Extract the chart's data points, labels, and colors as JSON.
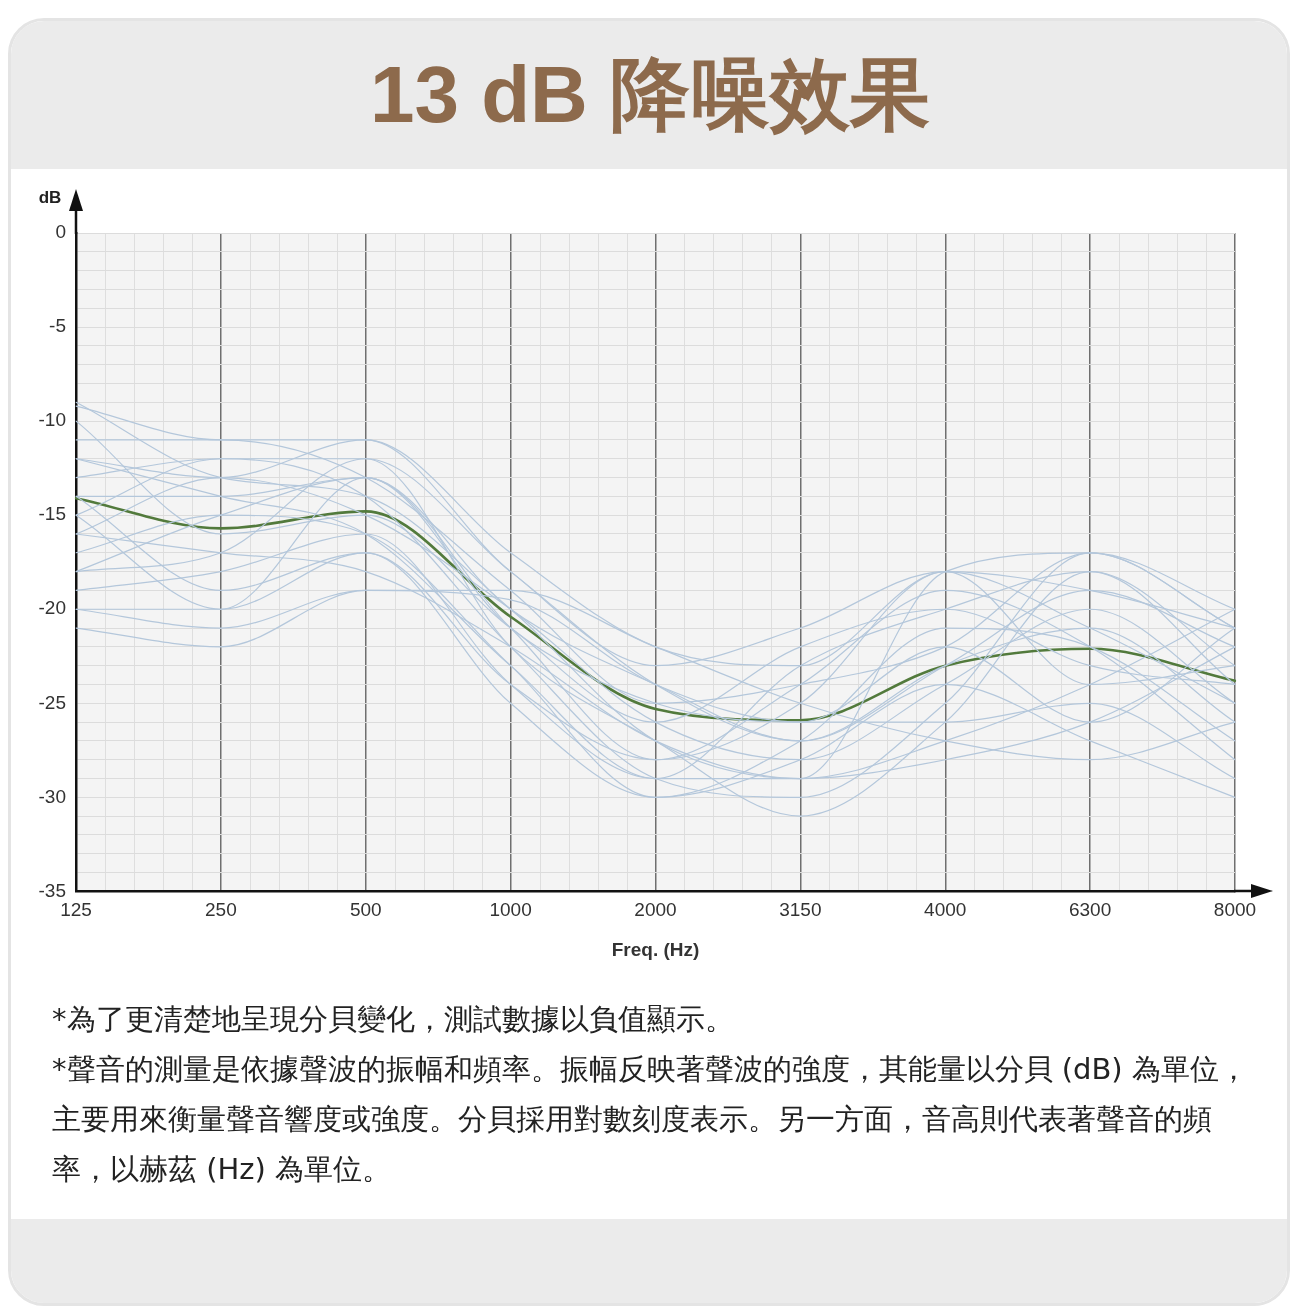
{
  "chart_data": {
    "type": "line",
    "title": "13 dB 降噪效果",
    "xlabel": "Freq. (Hz)",
    "ylabel": "dB",
    "categories": [
      "125",
      "250",
      "500",
      "1000",
      "2000",
      "3150",
      "4000",
      "6300",
      "8000"
    ],
    "series": [
      {
        "color": "#b4c7db",
        "values": [
          -9,
          -13,
          -14,
          -20,
          -27,
          -29,
          -18,
          -17,
          -20
        ]
      },
      {
        "color": "#b4c7db",
        "values": [
          -9.2,
          -11,
          -11,
          -18,
          -23,
          -21,
          -18,
          -19,
          -21
        ]
      },
      {
        "color": "#b4c7db",
        "values": [
          -11,
          -11,
          -13,
          -19,
          -25,
          -24,
          -22,
          -17,
          -21
        ]
      },
      {
        "color": "#b4c7db",
        "values": [
          -12,
          -13,
          -11,
          -17,
          -22,
          -23,
          -18,
          -21,
          -25
        ]
      },
      {
        "color": "#b4c7db",
        "values": [
          -13,
          -12,
          -12,
          -18,
          -24,
          -27,
          -23,
          -19,
          -22
        ]
      },
      {
        "color": "#b4c7db",
        "values": [
          -14,
          -14,
          -13,
          -21,
          -28,
          -25,
          -18,
          -24,
          -23
        ]
      },
      {
        "color": "#b4c7db",
        "values": [
          -15,
          -12,
          -14,
          -22,
          -29,
          -30,
          -25,
          -17,
          -21
        ]
      },
      {
        "color": "#b4c7db",
        "values": [
          -16,
          -13,
          -15,
          -20,
          -26,
          -28,
          -24,
          -20,
          -25
        ]
      },
      {
        "color": "#b4c7db",
        "values": [
          -17,
          -15,
          -16,
          -23,
          -30,
          -27,
          -21,
          -22,
          -27
        ]
      },
      {
        "color": "#b4c7db",
        "values": [
          -18,
          -17,
          -12,
          -22,
          -27,
          -31,
          -26,
          -18,
          -24
        ]
      },
      {
        "color": "#b4c7db",
        "values": [
          -19,
          -18,
          -16,
          -24,
          -29,
          -29,
          -28,
          -26,
          -22
        ]
      },
      {
        "color": "#b4c7db",
        "values": [
          -20,
          -20,
          -17,
          -25,
          -30,
          -28,
          -24,
          -27,
          -30
        ]
      },
      {
        "color": "#b4c7db",
        "values": [
          -21,
          -22,
          -19,
          -19,
          -22,
          -25,
          -27,
          -28,
          -26
        ]
      },
      {
        "color": "#b4c7db",
        "values": [
          -10,
          -16,
          -15,
          -21,
          -26,
          -22,
          -20,
          -23,
          -24
        ]
      },
      {
        "color": "#b4c7db",
        "values": [
          -20,
          -21,
          -19,
          -19.5,
          -24,
          -26,
          -26,
          -25,
          -29
        ]
      },
      {
        "color": "#b4c7db",
        "values": [
          -14,
          -19,
          -17,
          -24,
          -28,
          -24,
          -19,
          -22,
          -28
        ]
      },
      {
        "color": "#b4c7db",
        "values": [
          -18,
          -15,
          -13,
          -21,
          -25,
          -26,
          -22,
          -26,
          -21
        ]
      },
      {
        "color": "#b4c7db",
        "values": [
          -16,
          -17,
          -18,
          -22,
          -27,
          -29,
          -27,
          -24,
          -20
        ]
      },
      {
        "color": "#b4c7db",
        "values": [
          -12,
          -14,
          -16,
          -23,
          -29,
          -23,
          -20,
          -18,
          -23
        ]
      },
      {
        "color": "#b4c7db",
        "values": [
          -15,
          -20,
          -13,
          -20,
          -24,
          -27,
          -23,
          -21,
          -26
        ]
      },
      {
        "color": "#527a3c",
        "values": [
          -14.1,
          -15.7,
          -14.8,
          -20.4,
          -25.3,
          -25.9,
          -23.0,
          -22.1,
          -23.8
        ]
      }
    ],
    "ylim": [
      -35,
      0
    ],
    "yticks": [
      0,
      {
        "value": -1,
        "label": null
      },
      {
        "value": -2,
        "label": null
      },
      {
        "value": -3,
        "label": null
      },
      {
        "value": -4,
        "label": null
      },
      -5,
      {
        "value": -6,
        "label": null
      },
      {
        "value": -7,
        "label": null
      },
      {
        "value": -8,
        "label": null
      },
      {
        "value": -9,
        "label": null
      },
      -10,
      {
        "value": -11,
        "label": null
      },
      {
        "value": -12,
        "label": null
      },
      {
        "value": -13,
        "label": null
      },
      {
        "value": -14,
        "label": null
      },
      -15,
      {
        "value": -16,
        "label": null
      },
      {
        "value": -17,
        "label": null
      },
      {
        "value": -18,
        "label": null
      },
      {
        "value": -19,
        "label": null
      },
      -20,
      {
        "value": -21,
        "label": null
      },
      {
        "value": -22,
        "label": null
      },
      {
        "value": -23,
        "label": null
      },
      {
        "value": -24,
        "label": null
      },
      -25,
      {
        "value": -26,
        "label": null
      },
      {
        "value": -27,
        "label": null
      },
      {
        "value": -28,
        "label": null
      },
      {
        "value": -29,
        "label": null
      },
      -30,
      {
        "value": -31,
        "label": null
      },
      {
        "value": -32,
        "label": null
      },
      {
        "value": -33,
        "label": null
      },
      {
        "value": -34,
        "label": null
      },
      -35
    ],
    "grid": true,
    "legend": false,
    "marker": "none",
    "line_style": "solid",
    "annotations": [
      "*為了更清楚地呈現分貝變化，測試數據以負值顯示。",
      "*聲音的測量是依據聲波的振幅和頻率。振幅反映著聲波的強度，其能量以分貝 (dB) 為單位，主要用來衡量聲音響度或強度。分貝採用對數刻度表示。另一方面，音高則代表著聲音的頻率，以赫茲 (Hz) 為單位。"
    ]
  }
}
